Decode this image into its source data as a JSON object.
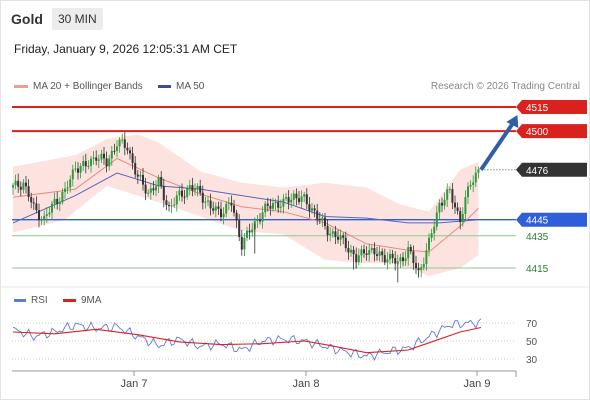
{
  "header": {
    "instrument": "Gold",
    "timeframe": "30 MIN",
    "timestamp": "Friday, January 9, 2026 12:05:31 AM CET"
  },
  "legend": {
    "ma_bb_label": "MA 20 + Bollinger Bands",
    "ma50_label": "MA 50",
    "copyright": "Research © 2026 Trading Central"
  },
  "rsi_legend": {
    "rsi_label": "RSI",
    "ma_label": "9MA"
  },
  "colors": {
    "resistance": "#d9211e",
    "support_pivot": "#2f5fd8",
    "support": "#8ecb8e",
    "current": "#333333",
    "arrow": "#2f5fa8",
    "bollinger_fill": "#fbd9d6",
    "ma20": "#e88a80",
    "ma50": "#5a64b8",
    "rsi": "#5b7bd9",
    "rsi_ma": "#e0201c",
    "candle_up": "#2f9a3a",
    "candle_down": "#333333"
  },
  "chart_data": [
    {
      "type": "candlestick",
      "title": "",
      "x_tick_labels": [
        "Jan 7",
        "Jan 8",
        "Jan 9"
      ],
      "ylim": [
        4398,
        4520
      ],
      "levels": [
        {
          "label": "4515",
          "value": 4515,
          "kind": "resistance"
        },
        {
          "label": "4500",
          "value": 4500,
          "kind": "resistance"
        },
        {
          "label": "4476",
          "value": 4476,
          "kind": "current"
        },
        {
          "label": "4445",
          "value": 4445,
          "kind": "pivot"
        },
        {
          "label": "4435",
          "value": 4435,
          "kind": "support"
        },
        {
          "label": "4415",
          "value": 4415,
          "kind": "support"
        }
      ],
      "close_path": [
        [
          0,
          4465
        ],
        [
          4,
          4468
        ],
        [
          8,
          4452
        ],
        [
          12,
          4445
        ],
        [
          16,
          4456
        ],
        [
          20,
          4462
        ],
        [
          24,
          4478
        ],
        [
          28,
          4478
        ],
        [
          32,
          4485
        ],
        [
          36,
          4480
        ],
        [
          40,
          4493
        ],
        [
          44,
          4490
        ],
        [
          48,
          4471
        ],
        [
          52,
          4462
        ],
        [
          56,
          4468
        ],
        [
          60,
          4452
        ],
        [
          64,
          4460
        ],
        [
          68,
          4465
        ],
        [
          72,
          4462
        ],
        [
          76,
          4452
        ],
        [
          80,
          4450
        ],
        [
          84,
          4455
        ],
        [
          88,
          4430
        ],
        [
          92,
          4440
        ],
        [
          96,
          4450
        ],
        [
          100,
          4455
        ],
        [
          104,
          4455
        ],
        [
          108,
          4460
        ],
        [
          112,
          4457
        ],
        [
          116,
          4450
        ],
        [
          120,
          4440
        ],
        [
          124,
          4435
        ],
        [
          128,
          4430
        ],
        [
          132,
          4420
        ],
        [
          136,
          4427
        ],
        [
          140,
          4423
        ],
        [
          144,
          4422
        ],
        [
          148,
          4418
        ],
        [
          152,
          4426
        ],
        [
          156,
          4412
        ],
        [
          160,
          4430
        ],
        [
          164,
          4455
        ],
        [
          168,
          4462
        ],
        [
          172,
          4445
        ],
        [
          176,
          4468
        ],
        [
          179,
          4476
        ]
      ],
      "ma20_path": [
        [
          0,
          4459
        ],
        [
          24,
          4464
        ],
        [
          40,
          4483
        ],
        [
          56,
          4471
        ],
        [
          72,
          4461
        ],
        [
          88,
          4453
        ],
        [
          104,
          4450
        ],
        [
          120,
          4443
        ],
        [
          136,
          4430
        ],
        [
          152,
          4426
        ],
        [
          160,
          4425
        ],
        [
          172,
          4441
        ],
        [
          179,
          4452
        ]
      ],
      "ma50_path": [
        [
          0,
          4443
        ],
        [
          24,
          4460
        ],
        [
          40,
          4474
        ],
        [
          56,
          4466
        ],
        [
          72,
          4464
        ],
        [
          88,
          4460
        ],
        [
          104,
          4456
        ],
        [
          120,
          4447
        ],
        [
          136,
          4446
        ],
        [
          152,
          4443
        ],
        [
          164,
          4443
        ],
        [
          179,
          4445
        ]
      ],
      "bb_upper_path": [
        [
          0,
          4478
        ],
        [
          24,
          4485
        ],
        [
          36,
          4495
        ],
        [
          48,
          4498
        ],
        [
          56,
          4493
        ],
        [
          72,
          4475
        ],
        [
          88,
          4468
        ],
        [
          104,
          4465
        ],
        [
          120,
          4468
        ],
        [
          136,
          4465
        ],
        [
          148,
          4455
        ],
        [
          160,
          4450
        ],
        [
          172,
          4476
        ],
        [
          179,
          4481
        ]
      ],
      "bb_lower_path": [
        [
          0,
          4437
        ],
        [
          20,
          4445
        ],
        [
          36,
          4466
        ],
        [
          52,
          4458
        ],
        [
          72,
          4447
        ],
        [
          88,
          4438
        ],
        [
          104,
          4436
        ],
        [
          120,
          4420
        ],
        [
          136,
          4418
        ],
        [
          148,
          4418
        ],
        [
          160,
          4410
        ],
        [
          172,
          4415
        ],
        [
          179,
          4423
        ]
      ],
      "projection": {
        "from": [
          180,
          4476
        ],
        "to": [
          194,
          4510
        ]
      }
    },
    {
      "type": "line",
      "title": "RSI",
      "y_tick_labels": [
        "70",
        "50",
        "30"
      ],
      "ylim": [
        22,
        80
      ],
      "rsi_path": [
        [
          0,
          63
        ],
        [
          8,
          55
        ],
        [
          16,
          60
        ],
        [
          24,
          68
        ],
        [
          32,
          64
        ],
        [
          40,
          66
        ],
        [
          48,
          55
        ],
        [
          56,
          45
        ],
        [
          64,
          52
        ],
        [
          72,
          44
        ],
        [
          80,
          47
        ],
        [
          88,
          40
        ],
        [
          96,
          50
        ],
        [
          104,
          52
        ],
        [
          112,
          50
        ],
        [
          120,
          44
        ],
        [
          128,
          38
        ],
        [
          136,
          33
        ],
        [
          144,
          38
        ],
        [
          152,
          42
        ],
        [
          160,
          55
        ],
        [
          168,
          68
        ],
        [
          176,
          70
        ],
        [
          180,
          70
        ]
      ],
      "rsi_ma_path": [
        [
          0,
          60
        ],
        [
          16,
          58
        ],
        [
          32,
          63
        ],
        [
          48,
          57
        ],
        [
          64,
          49
        ],
        [
          80,
          46
        ],
        [
          96,
          47
        ],
        [
          112,
          50
        ],
        [
          120,
          46
        ],
        [
          136,
          37
        ],
        [
          152,
          40
        ],
        [
          160,
          48
        ],
        [
          172,
          60
        ],
        [
          180,
          65
        ]
      ]
    }
  ]
}
